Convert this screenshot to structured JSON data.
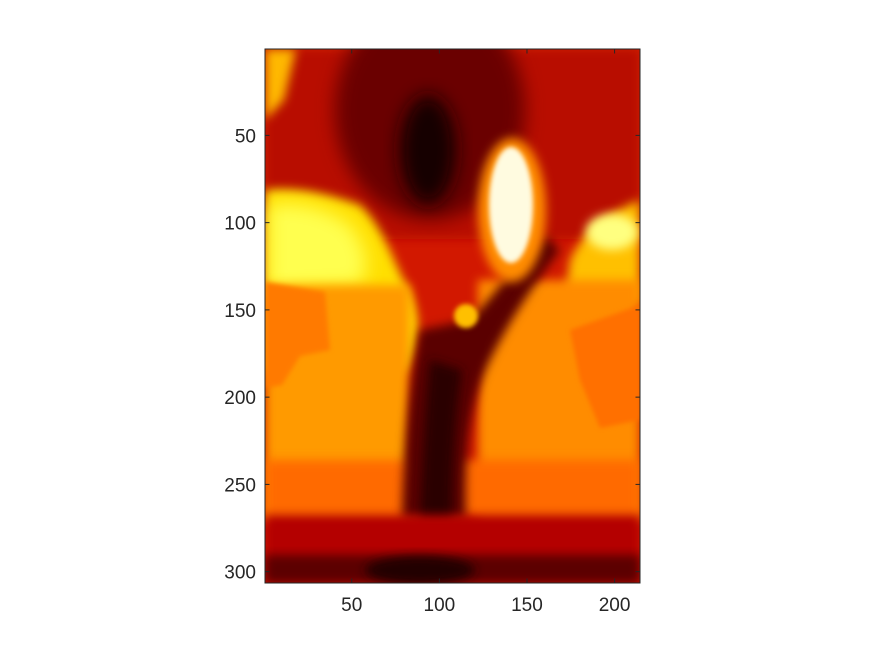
{
  "chart_data": {
    "type": "heatmap",
    "title": "",
    "xlabel": "",
    "ylabel": "",
    "colormap": "hot",
    "colormap_stops": [
      "#000000",
      "#ff0000",
      "#ffff00",
      "#ffffff"
    ],
    "xlim": [
      0.5,
      214.5
    ],
    "ylim": [
      0.5,
      306.5
    ],
    "y_reversed": true,
    "x_ticks": [
      50,
      100,
      150,
      200
    ],
    "x_tick_labels": [
      "50",
      "100",
      "150",
      "200"
    ],
    "y_ticks": [
      50,
      100,
      150,
      200,
      250,
      300
    ],
    "y_tick_labels": [
      "50",
      "100",
      "150",
      "200",
      "250",
      "300"
    ],
    "grid": false,
    "image_regions": [
      {
        "name": "top-dark-red",
        "intensity": 0.35
      },
      {
        "name": "central-black-core",
        "intensity": 0.05
      },
      {
        "name": "white-hot-blob",
        "intensity": 1.0
      },
      {
        "name": "small-yellow-spot",
        "intensity": 0.7
      },
      {
        "name": "left-yellow-lobe",
        "intensity": 0.75
      },
      {
        "name": "right-yellow-edge",
        "intensity": 0.8
      },
      {
        "name": "lower-orange-field",
        "intensity": 0.55
      },
      {
        "name": "dark-trunk",
        "intensity": 0.2
      },
      {
        "name": "bottom-red-band",
        "intensity": 0.3
      }
    ]
  }
}
